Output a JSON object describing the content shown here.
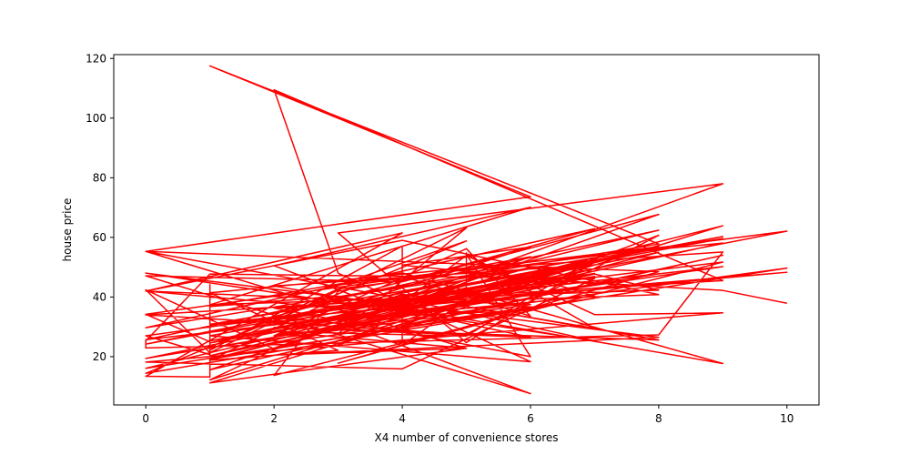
{
  "chart_data": {
    "type": "line",
    "title": "",
    "xlabel": "X4 number of convenience stores",
    "ylabel": "house price",
    "xlim": [
      -0.5,
      10.5
    ],
    "ylim": [
      3.8,
      121.3
    ],
    "xticks": [
      0,
      2,
      4,
      6,
      8,
      10
    ],
    "yticks": [
      20,
      40,
      60,
      80,
      100,
      120
    ],
    "xtick_labels": [
      "0",
      "2",
      "4",
      "6",
      "8",
      "10"
    ],
    "ytick_labels": [
      "20",
      "40",
      "60",
      "80",
      "100",
      "120"
    ],
    "grid": false,
    "legend": "none",
    "color": "#ff0000",
    "series": [
      {
        "x": [
          10,
          9,
          5,
          5,
          5,
          3,
          7,
          6,
          1,
          3,
          1,
          9,
          5,
          4,
          4,
          2,
          6,
          1,
          8,
          7,
          3,
          7,
          1,
          7,
          4,
          2,
          5,
          6,
          4,
          4,
          1,
          1,
          0,
          5,
          9,
          8,
          0,
          0,
          1,
          7,
          4,
          0,
          9,
          7,
          5,
          4,
          0,
          4,
          0,
          1,
          1,
          1,
          0,
          4,
          9,
          2,
          3,
          6,
          2,
          0,
          1,
          5,
          3,
          8,
          1,
          7,
          4,
          6,
          3,
          0,
          4,
          8,
          2,
          6,
          5,
          7,
          5,
          8,
          2,
          6,
          3,
          1,
          4,
          9,
          2,
          7,
          1,
          6,
          3,
          2,
          9,
          0,
          5,
          8,
          4,
          2,
          7,
          0,
          3,
          8,
          1,
          6,
          0,
          4,
          9,
          3,
          5,
          7,
          1,
          2,
          8,
          4,
          0,
          6,
          3,
          9,
          1,
          5,
          2,
          8,
          0,
          7,
          4,
          6,
          1,
          3,
          10,
          2,
          5,
          0,
          8,
          3,
          6,
          1,
          9,
          4,
          2,
          7,
          0,
          5,
          3,
          8,
          1,
          6,
          4,
          2,
          10,
          0,
          7,
          3,
          5,
          1,
          9,
          4,
          6,
          2,
          8,
          0,
          3,
          7,
          1,
          5,
          4,
          9,
          2,
          6,
          0,
          8,
          3,
          10,
          1,
          7,
          5,
          2,
          4,
          6,
          0,
          9,
          3,
          1
        ],
        "y": [
          37.9,
          42.2,
          47.3,
          54.8,
          43.1,
          32.1,
          40.3,
          46.7,
          18.8,
          22.1,
          41.4,
          58.1,
          39.3,
          23.8,
          34.3,
          50.5,
          70.1,
          37.4,
          42.3,
          47.7,
          29.3,
          51.6,
          24.6,
          47.9,
          38.8,
          27.0,
          56.2,
          33.6,
          47.0,
          57.1,
          22.1,
          25.0,
          34.2,
          49.3,
          55.1,
          27.3,
          22.9,
          25.3,
          47.7,
          46.2,
          15.9,
          18.2,
          34.7,
          34.1,
          53.9,
          38.3,
          42.0,
          61.5,
          13.4,
          13.2,
          44.2,
          20.7,
          27.0,
          38.9,
          51.7,
          13.7,
          41.9,
          53.5,
          22.6,
          42.4,
          21.3,
          63.2,
          27.7,
          55.0,
          25.3,
          44.3,
          50.7,
          56.8,
          36.2,
          42.0,
          59.0,
          40.8,
          36.3,
          20.0,
          54.4,
          29.5,
          36.8,
          25.6,
          29.8,
          26.5,
          40.3,
          36.8,
          48.1,
          17.7,
          43.7,
          50.8,
          27.0,
          18.3,
          48.0,
          109.5,
          45.5,
          34.0,
          27.5,
          60.7,
          28.9,
          33.4,
          62.9,
          29.7,
          40.1,
          57.8,
          117.5,
          73.6,
          55.3,
          39.4,
          78.0,
          61.5,
          24.7,
          51.8,
          12.2,
          22.3,
          67.7,
          45.1,
          47.1,
          7.6,
          31.7,
          63.9,
          11.2,
          22.8,
          20.5,
          26.5,
          48.0,
          25.3,
          39.3,
          37.5,
          23.1,
          42.7,
          62.1,
          28.5,
          22.8,
          55.3,
          48.5,
          17.8,
          35.6,
          30.9,
          50.2,
          34.5,
          24.4,
          39.6,
          14.4,
          58.8,
          44.0,
          56.9,
          19.1,
          36.7,
          40.9,
          26.6,
          49.7,
          16.1,
          52.5,
          23.9,
          44.7,
          15.6,
          54.0,
          30.4,
          46.1,
          31.2,
          62.4,
          25.7,
          33.1,
          46.9,
          20.3,
          41.2,
          40.0,
          60.3,
          32.5,
          45.6,
          19.4,
          47.8,
          35.9,
          48.3,
          30.8,
          53.2,
          26.9,
          28.4,
          38.0,
          49.9,
          24.2,
          59.6,
          39.9,
          18.7
        ]
      }
    ]
  }
}
